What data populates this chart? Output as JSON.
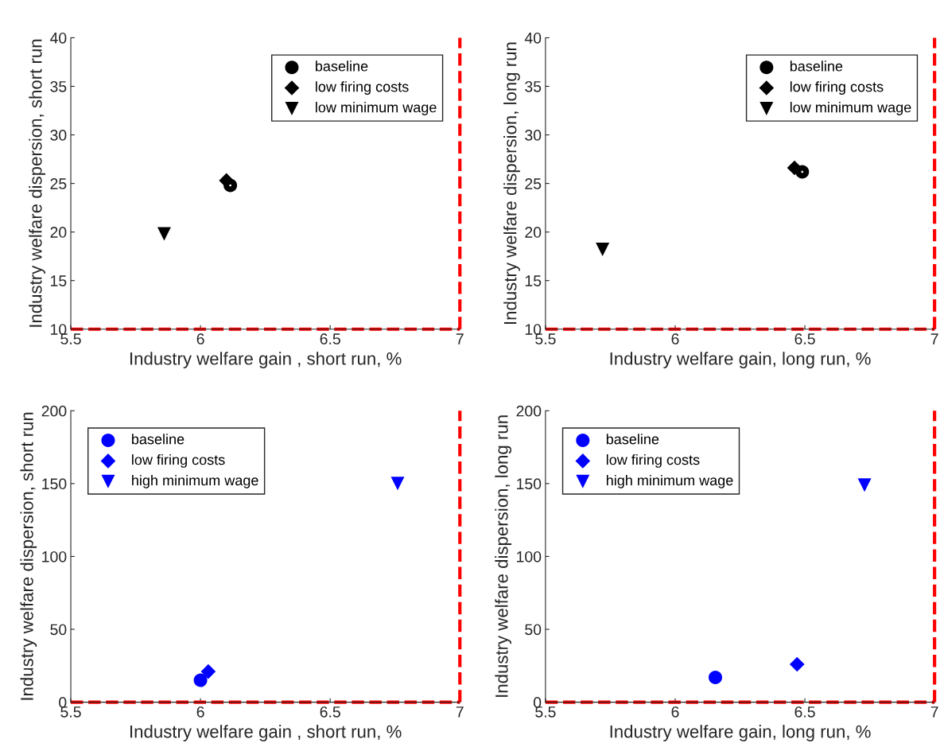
{
  "chart_data": [
    {
      "type": "scatter",
      "xlabel": "Industry welfare gain , short run, %",
      "ylabel": "Industry welfare dispersion, short run",
      "xlim": [
        5.5,
        7
      ],
      "xticks": [
        5.5,
        6,
        6.5,
        7
      ],
      "ylim": [
        10,
        40
      ],
      "yticks": [
        10,
        15,
        20,
        25,
        30,
        35,
        40
      ],
      "legend": "top right",
      "grid": false,
      "ref_lines": [
        {
          "axis": "x",
          "value": 7,
          "color": "#ff0000",
          "line_style": "dashed"
        },
        {
          "axis": "y",
          "value": 10,
          "color": "#ff0000",
          "line_style": "dashed"
        }
      ],
      "series": [
        {
          "name": "baseline",
          "color": "#000000",
          "marker": "circle",
          "x": [
            6.115
          ],
          "values": [
            24.8
          ]
        },
        {
          "name": "low firing costs",
          "color": "#000000",
          "marker": "diamond",
          "x": [
            6.1
          ],
          "values": [
            25.3
          ]
        },
        {
          "name": "low minimum wage",
          "color": "#000000",
          "marker": "triangle",
          "x": [
            5.86
          ],
          "values": [
            19.8
          ]
        }
      ]
    },
    {
      "type": "scatter",
      "xlabel": "Industry welfare gain, long run, %",
      "ylabel": "Industry welfare dispersion, long run",
      "xlim": [
        5.5,
        7
      ],
      "xticks": [
        5.5,
        6,
        6.5,
        7
      ],
      "ylim": [
        10,
        40
      ],
      "yticks": [
        10,
        15,
        20,
        25,
        30,
        35,
        40
      ],
      "legend": "top right",
      "grid": false,
      "ref_lines": [
        {
          "axis": "x",
          "value": 7,
          "color": "#ff0000",
          "line_style": "dashed"
        },
        {
          "axis": "y",
          "value": 10,
          "color": "#ff0000",
          "line_style": "dashed"
        }
      ],
      "series": [
        {
          "name": "baseline",
          "color": "#000000",
          "marker": "circle",
          "x": [
            6.49
          ],
          "values": [
            26.2
          ]
        },
        {
          "name": "low firing costs",
          "color": "#000000",
          "marker": "diamond",
          "x": [
            6.46
          ],
          "values": [
            26.6
          ]
        },
        {
          "name": "low minimum wage",
          "color": "#000000",
          "marker": "triangle",
          "x": [
            5.72
          ],
          "values": [
            18.2
          ]
        }
      ]
    },
    {
      "type": "scatter",
      "xlabel": "Industry welfare gain , short run, %",
      "ylabel": "Industry welfare dispersion, short run",
      "xlim": [
        5.5,
        7
      ],
      "xticks": [
        5.5,
        6,
        6.5,
        7
      ],
      "ylim": [
        0,
        200
      ],
      "yticks": [
        0,
        50,
        100,
        150,
        200
      ],
      "legend": "top left",
      "grid": false,
      "ref_lines": [
        {
          "axis": "x",
          "value": 7,
          "color": "#ff0000",
          "line_style": "dashed"
        },
        {
          "axis": "y",
          "value": 0,
          "color": "#ff0000",
          "line_style": "dashed"
        }
      ],
      "series": [
        {
          "name": "baseline",
          "color": "#0000ff",
          "marker": "circle",
          "x": [
            6.0
          ],
          "values": [
            15
          ]
        },
        {
          "name": "low firing costs",
          "color": "#0000ff",
          "marker": "diamond",
          "x": [
            6.03
          ],
          "values": [
            21
          ]
        },
        {
          "name": "high minimum wage",
          "color": "#0000ff",
          "marker": "triangle",
          "x": [
            6.76
          ],
          "values": [
            150
          ]
        }
      ]
    },
    {
      "type": "scatter",
      "xlabel": "Industry welfare gain, long run, %",
      "ylabel": "Industry welfare dispersion, long run",
      "xlim": [
        5.5,
        7
      ],
      "xticks": [
        5.5,
        6,
        6.5,
        7
      ],
      "ylim": [
        0,
        200
      ],
      "yticks": [
        0,
        50,
        100,
        150,
        200
      ],
      "legend": "top left",
      "grid": false,
      "ref_lines": [
        {
          "axis": "x",
          "value": 7,
          "color": "#ff0000",
          "line_style": "dashed"
        },
        {
          "axis": "y",
          "value": 0,
          "color": "#ff0000",
          "line_style": "dashed"
        }
      ],
      "series": [
        {
          "name": "baseline",
          "color": "#0000ff",
          "marker": "circle",
          "x": [
            6.155
          ],
          "values": [
            17
          ]
        },
        {
          "name": "low firing costs",
          "color": "#0000ff",
          "marker": "diamond",
          "x": [
            6.47
          ],
          "values": [
            26
          ]
        },
        {
          "name": "high minimum wage",
          "color": "#0000ff",
          "marker": "triangle",
          "x": [
            6.73
          ],
          "values": [
            149
          ]
        }
      ]
    }
  ]
}
